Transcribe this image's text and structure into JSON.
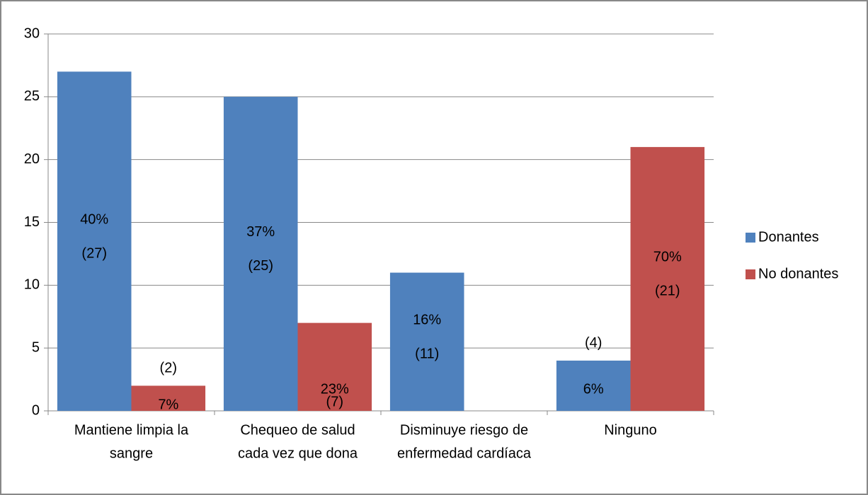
{
  "chart_data": {
    "type": "bar",
    "categories": [
      [
        "Mantiene limpia la",
        "sangre"
      ],
      [
        "Chequeo de salud",
        "cada vez que dona"
      ],
      [
        "Disminuye riesgo de",
        "enfermedad cardíaca"
      ],
      [
        "Ninguno"
      ]
    ],
    "series": [
      {
        "name": "Donantes",
        "color": "#4f81bd",
        "values": [
          27,
          25,
          11,
          4
        ],
        "value_labels": [
          "(27)",
          "(25)",
          "(11)",
          "(4)"
        ],
        "percent_labels": [
          "40%",
          "37%",
          "16%",
          "6%"
        ]
      },
      {
        "name": "No donantes",
        "color": "#c0504d",
        "values": [
          2,
          7,
          0,
          21
        ],
        "value_labels": [
          "(2)",
          "(7)",
          null,
          "(21)"
        ],
        "percent_labels": [
          "7%",
          "23%",
          null,
          "70%"
        ]
      }
    ],
    "ylim": [
      0,
      30
    ],
    "yticks": [
      0,
      5,
      10,
      15,
      20,
      25,
      30
    ],
    "grid": true,
    "legend": "right"
  }
}
